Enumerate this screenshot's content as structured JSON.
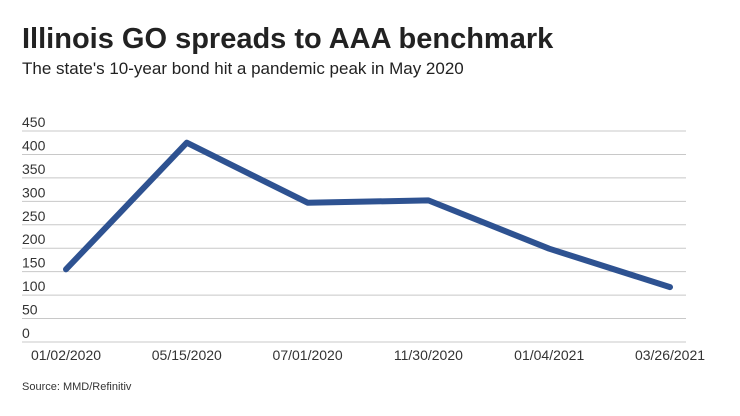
{
  "chart_data": {
    "type": "line",
    "title": "Illinois GO spreads to AAA benchmark",
    "subtitle": "The state's 10-year bond hit a pandemic peak in May 2020",
    "source": "Source: MMD/Refinitiv",
    "categories": [
      "01/02/2020",
      "05/15/2020",
      "07/01/2020",
      "11/30/2020",
      "01/04/2021",
      "03/26/2021"
    ],
    "values": [
      155,
      425,
      297,
      302,
      199,
      117
    ],
    "color": "#2e5291",
    "ylim": [
      0,
      450
    ],
    "yticks": [
      0,
      50,
      100,
      150,
      200,
      250,
      300,
      350,
      400,
      450
    ],
    "grid": true
  }
}
